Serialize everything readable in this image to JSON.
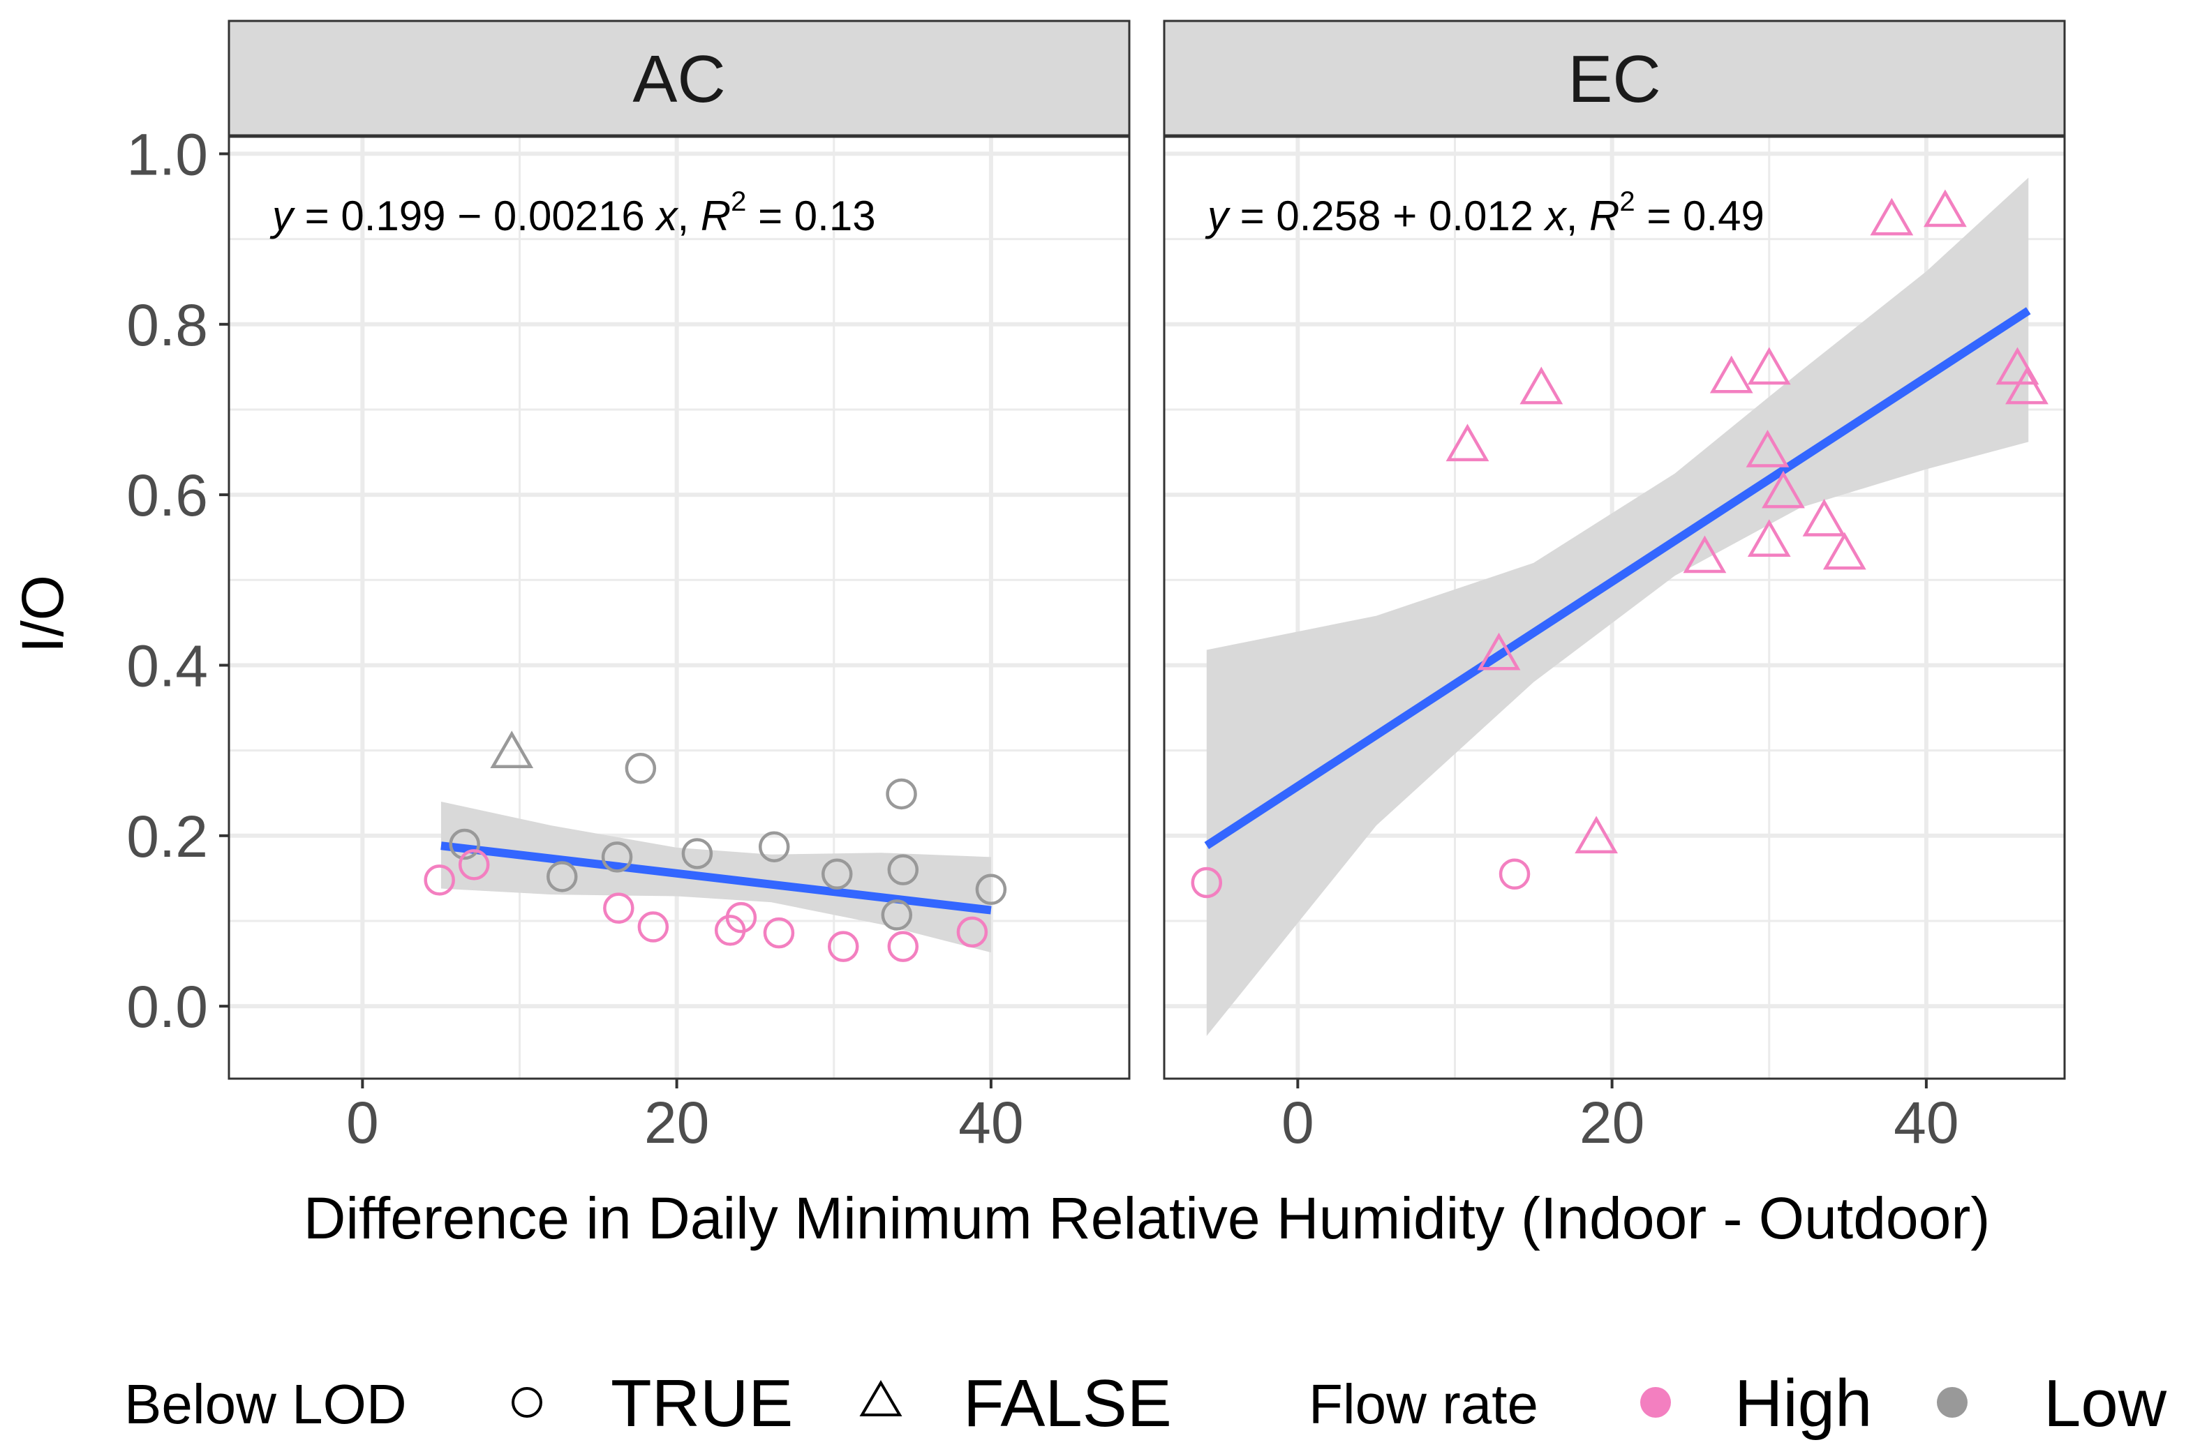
{
  "chart_data": {
    "type": "scatter",
    "facets": [
      {
        "name": "AC",
        "equation_parts": {
          "y": "y",
          "body": " = 0.199 − 0.00216 ",
          "x": "x",
          "r2_label": "R",
          "r2_exp": "2",
          "r2_value": " = 0.13"
        },
        "fit": {
          "intercept": 0.199,
          "slope": -0.00216,
          "r2": 0.13,
          "x_range": [
            5,
            40
          ],
          "ci_band": [
            [
              5,
              0.138,
              0.24
            ],
            [
              12,
              0.131,
              0.212
            ],
            [
              20,
              0.129,
              0.186
            ],
            [
              26,
              0.122,
              0.178
            ],
            [
              33,
              0.096,
              0.18
            ],
            [
              40,
              0.063,
              0.175
            ]
          ]
        },
        "points": [
          {
            "x": 6.5,
            "y": 0.19,
            "below_lod": true,
            "flow": "Low"
          },
          {
            "x": 9.5,
            "y": 0.295,
            "below_lod": false,
            "flow": "Low"
          },
          {
            "x": 12.7,
            "y": 0.152,
            "below_lod": true,
            "flow": "Low"
          },
          {
            "x": 16.2,
            "y": 0.175,
            "below_lod": true,
            "flow": "Low"
          },
          {
            "x": 17.7,
            "y": 0.279,
            "below_lod": true,
            "flow": "Low"
          },
          {
            "x": 21.3,
            "y": 0.179,
            "below_lod": true,
            "flow": "Low"
          },
          {
            "x": 26.2,
            "y": 0.187,
            "below_lod": true,
            "flow": "Low"
          },
          {
            "x": 30.2,
            "y": 0.155,
            "below_lod": true,
            "flow": "Low"
          },
          {
            "x": 34.3,
            "y": 0.249,
            "below_lod": true,
            "flow": "Low"
          },
          {
            "x": 34.4,
            "y": 0.16,
            "below_lod": true,
            "flow": "Low"
          },
          {
            "x": 34.0,
            "y": 0.107,
            "below_lod": true,
            "flow": "Low"
          },
          {
            "x": 40.0,
            "y": 0.137,
            "below_lod": true,
            "flow": "Low"
          },
          {
            "x": 4.9,
            "y": 0.148,
            "below_lod": true,
            "flow": "High"
          },
          {
            "x": 7.1,
            "y": 0.166,
            "below_lod": true,
            "flow": "High"
          },
          {
            "x": 16.3,
            "y": 0.115,
            "below_lod": true,
            "flow": "High"
          },
          {
            "x": 18.5,
            "y": 0.093,
            "below_lod": true,
            "flow": "High"
          },
          {
            "x": 23.4,
            "y": 0.089,
            "below_lod": true,
            "flow": "High"
          },
          {
            "x": 24.1,
            "y": 0.104,
            "below_lod": true,
            "flow": "High"
          },
          {
            "x": 26.5,
            "y": 0.086,
            "below_lod": true,
            "flow": "High"
          },
          {
            "x": 30.6,
            "y": 0.07,
            "below_lod": true,
            "flow": "High"
          },
          {
            "x": 34.4,
            "y": 0.07,
            "below_lod": true,
            "flow": "High"
          },
          {
            "x": 38.8,
            "y": 0.087,
            "below_lod": true,
            "flow": "High"
          }
        ]
      },
      {
        "name": "EC",
        "equation_parts": {
          "y": "y",
          "body": " = 0.258 + 0.012 ",
          "x": "x",
          "r2_label": "R",
          "r2_exp": "2",
          "r2_value": " = 0.49"
        },
        "fit": {
          "intercept": 0.258,
          "slope": 0.012,
          "r2": 0.49,
          "x_range": [
            -5.8,
            46.5
          ],
          "ci_band": [
            [
              -5.8,
              -0.035,
              0.418
            ],
            [
              5,
              0.212,
              0.458
            ],
            [
              15,
              0.38,
              0.52
            ],
            [
              24,
              0.505,
              0.625
            ],
            [
              32,
              0.585,
              0.745
            ],
            [
              40,
              0.63,
              0.862
            ],
            [
              46.5,
              0.662,
              0.972
            ]
          ]
        },
        "points": [
          {
            "x": -5.8,
            "y": 0.145,
            "below_lod": true,
            "flow": "High"
          },
          {
            "x": 13.8,
            "y": 0.155,
            "below_lod": true,
            "flow": "High"
          },
          {
            "x": 10.8,
            "y": 0.655,
            "below_lod": false,
            "flow": "High"
          },
          {
            "x": 12.8,
            "y": 0.41,
            "below_lod": false,
            "flow": "High"
          },
          {
            "x": 15.5,
            "y": 0.722,
            "below_lod": false,
            "flow": "High"
          },
          {
            "x": 19.0,
            "y": 0.195,
            "below_lod": false,
            "flow": "High"
          },
          {
            "x": 25.9,
            "y": 0.524,
            "below_lod": false,
            "flow": "High"
          },
          {
            "x": 27.6,
            "y": 0.735,
            "below_lod": false,
            "flow": "High"
          },
          {
            "x": 30.0,
            "y": 0.745,
            "below_lod": false,
            "flow": "High"
          },
          {
            "x": 29.9,
            "y": 0.648,
            "below_lod": false,
            "flow": "High"
          },
          {
            "x": 30.9,
            "y": 0.6,
            "below_lod": false,
            "flow": "High"
          },
          {
            "x": 30.0,
            "y": 0.543,
            "below_lod": false,
            "flow": "High"
          },
          {
            "x": 33.5,
            "y": 0.567,
            "below_lod": false,
            "flow": "High"
          },
          {
            "x": 34.8,
            "y": 0.528,
            "below_lod": false,
            "flow": "High"
          },
          {
            "x": 37.8,
            "y": 0.92,
            "below_lod": false,
            "flow": "High"
          },
          {
            "x": 41.2,
            "y": 0.93,
            "below_lod": false,
            "flow": "High"
          },
          {
            "x": 45.8,
            "y": 0.745,
            "below_lod": false,
            "flow": "High"
          },
          {
            "x": 46.4,
            "y": 0.722,
            "below_lod": false,
            "flow": "High"
          }
        ]
      }
    ],
    "xlabel": "Difference in Daily Minimum Relative Humidity (Indoor - Outdoor)",
    "ylabel": "I/O",
    "xlim": [
      -8.5,
      48.8
    ],
    "ylim": [
      -0.085,
      1.02
    ],
    "x_ticks": [
      0,
      20,
      40
    ],
    "x_tick_labels": [
      "0",
      "20",
      "40"
    ],
    "y_ticks": [
      0,
      0.2,
      0.4,
      0.6,
      0.8,
      1.0
    ],
    "y_tick_labels": [
      "0.0",
      "0.2",
      "0.4",
      "0.6",
      "0.8",
      "1.0"
    ],
    "grid": true,
    "legend": {
      "placement": "bottom",
      "shape_title": "Below LOD",
      "shape_items": [
        {
          "label": "TRUE",
          "shape": "circle"
        },
        {
          "label": "FALSE",
          "shape": "triangle"
        }
      ],
      "color_title": "Flow rate",
      "color_items": [
        {
          "label": "High",
          "color": "#F37FC0"
        },
        {
          "label": "Low",
          "color": "#999999"
        }
      ]
    },
    "colors": {
      "High": "#F37FC0",
      "Low": "#999999",
      "fit_line": "#3366FF",
      "ci_fill": "#D9D9D9",
      "strip_bg": "#D9D9D9",
      "grid": "#EBEBEB"
    }
  }
}
